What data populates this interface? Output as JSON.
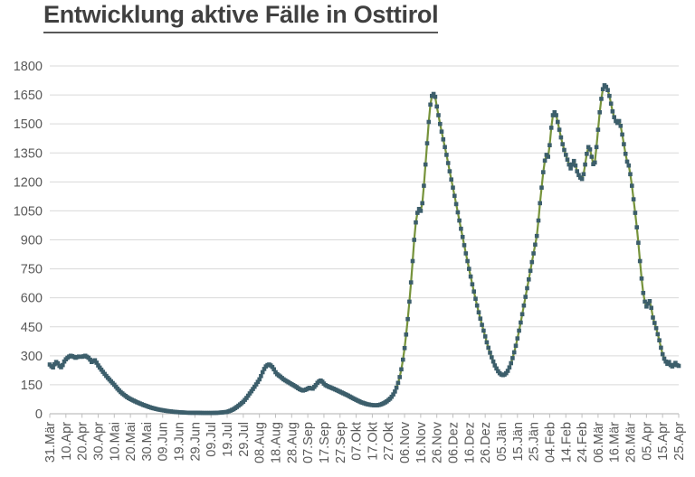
{
  "title": "Entwicklung aktive Fälle in Osttirol",
  "colors": {
    "line": "#76933B",
    "marker": "#3C5E6B",
    "grid": "#D9D9D9",
    "axis": "#BFBFBF",
    "tick_text": "#595959",
    "title_text": "#404040",
    "background": "#FFFFFF"
  },
  "chart_data": {
    "type": "line",
    "title": "Entwicklung aktive Fälle in Osttirol",
    "xlabel": "",
    "ylabel": "",
    "legend": "none",
    "grid": "horizontal",
    "y_axis": {
      "min": 0,
      "max": 1800,
      "ticks": [
        0,
        150,
        300,
        450,
        600,
        750,
        900,
        1050,
        1200,
        1350,
        1500,
        1650,
        1800
      ]
    },
    "x_axis": {
      "tick_interval_days": 10,
      "total_days": 390,
      "tick_labels": [
        "31.Mär",
        "10.Apr",
        "20.Apr",
        "30.Apr",
        "10.Mai",
        "20.Mai",
        "30.Mai",
        "09.Jun",
        "19.Jun",
        "29.Jun",
        "09.Jul",
        "19.Jul",
        "29.Jul",
        "08.Aug",
        "18.Aug",
        "28.Aug",
        "07.Sep",
        "17.Sep",
        "27.Sep",
        "07.Okt",
        "17.Okt",
        "27.Okt",
        "06.Nov",
        "16.Nov",
        "26.Nov",
        "06.Dez",
        "16.Dez",
        "26.Dez",
        "05.Jän",
        "15.Jän",
        "25.Jän",
        "04.Feb",
        "14.Feb",
        "24.Feb",
        "06.Mär",
        "16.Mär",
        "26.Mär",
        "05.Apr",
        "15.Apr",
        "25.Apr"
      ]
    },
    "series": [
      {
        "marker": "square",
        "points_day_value": [
          [
            0,
            255
          ],
          [
            1,
            246
          ],
          [
            2,
            240
          ],
          [
            3,
            256
          ],
          [
            4,
            268
          ],
          [
            5,
            261
          ],
          [
            6,
            248
          ],
          [
            7,
            241
          ],
          [
            8,
            252
          ],
          [
            9,
            270
          ],
          [
            10,
            282
          ],
          [
            11,
            290
          ],
          [
            12,
            296
          ],
          [
            13,
            300
          ],
          [
            14,
            298
          ],
          [
            15,
            294
          ],
          [
            16,
            290
          ],
          [
            17,
            293
          ],
          [
            18,
            296
          ],
          [
            20,
            295
          ],
          [
            22,
            300
          ],
          [
            24,
            290
          ],
          [
            25,
            280
          ],
          [
            26,
            268
          ],
          [
            27,
            273
          ],
          [
            28,
            277
          ],
          [
            29,
            264
          ],
          [
            30,
            250
          ],
          [
            32,
            228
          ],
          [
            34,
            206
          ],
          [
            36,
            186
          ],
          [
            38,
            168
          ],
          [
            40,
            150
          ],
          [
            42,
            130
          ],
          [
            44,
            112
          ],
          [
            46,
            98
          ],
          [
            48,
            86
          ],
          [
            50,
            76
          ],
          [
            52,
            68
          ],
          [
            54,
            60
          ],
          [
            56,
            53
          ],
          [
            58,
            46
          ],
          [
            60,
            40
          ],
          [
            62,
            34
          ],
          [
            64,
            29
          ],
          [
            66,
            25
          ],
          [
            68,
            21
          ],
          [
            70,
            18
          ],
          [
            73,
            14
          ],
          [
            76,
            11
          ],
          [
            80,
            8
          ],
          [
            84,
            6
          ],
          [
            88,
            5
          ],
          [
            92,
            5
          ],
          [
            96,
            4
          ],
          [
            100,
            4
          ],
          [
            104,
            5
          ],
          [
            107,
            7
          ],
          [
            110,
            10
          ],
          [
            112,
            16
          ],
          [
            114,
            24
          ],
          [
            116,
            35
          ],
          [
            118,
            48
          ],
          [
            120,
            62
          ],
          [
            122,
            82
          ],
          [
            124,
            105
          ],
          [
            126,
            128
          ],
          [
            128,
            152
          ],
          [
            129,
            165
          ],
          [
            130,
            178
          ],
          [
            131,
            195
          ],
          [
            132,
            215
          ],
          [
            133,
            232
          ],
          [
            134,
            245
          ],
          [
            135,
            252
          ],
          [
            136,
            255
          ],
          [
            137,
            250
          ],
          [
            138,
            242
          ],
          [
            139,
            230
          ],
          [
            140,
            215
          ],
          [
            141,
            205
          ],
          [
            142,
            198
          ],
          [
            143,
            192
          ],
          [
            144,
            185
          ],
          [
            145,
            178
          ],
          [
            147,
            168
          ],
          [
            149,
            158
          ],
          [
            151,
            148
          ],
          [
            153,
            138
          ],
          [
            155,
            127
          ],
          [
            157,
            120
          ],
          [
            159,
            126
          ],
          [
            161,
            134
          ],
          [
            163,
            130
          ],
          [
            165,
            148
          ],
          [
            166,
            160
          ],
          [
            167,
            168
          ],
          [
            168,
            172
          ],
          [
            169,
            166
          ],
          [
            170,
            156
          ],
          [
            171,
            148
          ],
          [
            173,
            140
          ],
          [
            175,
            133
          ],
          [
            177,
            126
          ],
          [
            179,
            118
          ],
          [
            181,
            110
          ],
          [
            183,
            102
          ],
          [
            185,
            94
          ],
          [
            187,
            85
          ],
          [
            189,
            76
          ],
          [
            191,
            68
          ],
          [
            193,
            60
          ],
          [
            195,
            54
          ],
          [
            197,
            49
          ],
          [
            199,
            46
          ],
          [
            201,
            44
          ],
          [
            203,
            44
          ],
          [
            205,
            47
          ],
          [
            207,
            54
          ],
          [
            209,
            64
          ],
          [
            211,
            78
          ],
          [
            212,
            88
          ],
          [
            213,
            100
          ],
          [
            214,
            115
          ],
          [
            215,
            135
          ],
          [
            216,
            160
          ],
          [
            217,
            190
          ],
          [
            218,
            230
          ],
          [
            219,
            280
          ],
          [
            220,
            340
          ],
          [
            221,
            410
          ],
          [
            222,
            490
          ],
          [
            223,
            580
          ],
          [
            224,
            680
          ],
          [
            225,
            790
          ],
          [
            226,
            900
          ],
          [
            227,
            990
          ],
          [
            228,
            1040
          ],
          [
            229,
            1060
          ],
          [
            230,
            1050
          ],
          [
            231,
            1090
          ],
          [
            232,
            1180
          ],
          [
            233,
            1290
          ],
          [
            234,
            1400
          ],
          [
            235,
            1510
          ],
          [
            236,
            1600
          ],
          [
            237,
            1645
          ],
          [
            238,
            1655
          ],
          [
            239,
            1640
          ],
          [
            240,
            1590
          ],
          [
            242,
            1500
          ],
          [
            244,
            1420
          ],
          [
            246,
            1340
          ],
          [
            248,
            1255
          ],
          [
            250,
            1170
          ],
          [
            252,
            1085
          ],
          [
            254,
            1000
          ],
          [
            256,
            915
          ],
          [
            258,
            830
          ],
          [
            260,
            750
          ],
          [
            262,
            670
          ],
          [
            264,
            595
          ],
          [
            266,
            525
          ],
          [
            268,
            460
          ],
          [
            270,
            400
          ],
          [
            271,
            370
          ],
          [
            272,
            342
          ],
          [
            273,
            316
          ],
          [
            274,
            292
          ],
          [
            275,
            270
          ],
          [
            276,
            250
          ],
          [
            277,
            234
          ],
          [
            278,
            220
          ],
          [
            279,
            210
          ],
          [
            280,
            203
          ],
          [
            281,
            200
          ],
          [
            282,
            203
          ],
          [
            283,
            210
          ],
          [
            284,
            222
          ],
          [
            285,
            240
          ],
          [
            286,
            262
          ],
          [
            287,
            288
          ],
          [
            288,
            318
          ],
          [
            289,
            352
          ],
          [
            290,
            390
          ],
          [
            291,
            430
          ],
          [
            292,
            472
          ],
          [
            293,
            515
          ],
          [
            294,
            560
          ],
          [
            295,
            605
          ],
          [
            296,
            650
          ],
          [
            297,
            695
          ],
          [
            298,
            740
          ],
          [
            299,
            785
          ],
          [
            300,
            830
          ],
          [
            301,
            875
          ],
          [
            302,
            920
          ],
          [
            303,
            1000
          ],
          [
            304,
            1090
          ],
          [
            305,
            1170
          ],
          [
            306,
            1250
          ],
          [
            307,
            1310
          ],
          [
            308,
            1340
          ],
          [
            309,
            1330
          ],
          [
            310,
            1390
          ],
          [
            311,
            1480
          ],
          [
            312,
            1545
          ],
          [
            313,
            1560
          ],
          [
            314,
            1545
          ],
          [
            315,
            1510
          ],
          [
            316,
            1470
          ],
          [
            317,
            1430
          ],
          [
            318,
            1395
          ],
          [
            319,
            1365
          ],
          [
            320,
            1340
          ],
          [
            321,
            1315
          ],
          [
            322,
            1290
          ],
          [
            323,
            1270
          ],
          [
            324,
            1290
          ],
          [
            325,
            1308
          ],
          [
            326,
            1285
          ],
          [
            327,
            1255
          ],
          [
            328,
            1235
          ],
          [
            329,
            1222
          ],
          [
            330,
            1215
          ],
          [
            331,
            1240
          ],
          [
            332,
            1290
          ],
          [
            333,
            1345
          ],
          [
            334,
            1380
          ],
          [
            335,
            1368
          ],
          [
            336,
            1330
          ],
          [
            337,
            1292
          ],
          [
            338,
            1300
          ],
          [
            339,
            1380
          ],
          [
            340,
            1470
          ],
          [
            341,
            1560
          ],
          [
            342,
            1630
          ],
          [
            343,
            1680
          ],
          [
            344,
            1700
          ],
          [
            345,
            1692
          ],
          [
            346,
            1675
          ],
          [
            347,
            1645
          ],
          [
            348,
            1605
          ],
          [
            349,
            1565
          ],
          [
            350,
            1535
          ],
          [
            351,
            1515
          ],
          [
            352,
            1505
          ],
          [
            353,
            1515
          ],
          [
            354,
            1490
          ],
          [
            355,
            1445
          ],
          [
            356,
            1395
          ],
          [
            357,
            1345
          ],
          [
            358,
            1305
          ],
          [
            359,
            1285
          ],
          [
            360,
            1240
          ],
          [
            361,
            1180
          ],
          [
            362,
            1110
          ],
          [
            363,
            1040
          ],
          [
            364,
            965
          ],
          [
            365,
            885
          ],
          [
            366,
            790
          ],
          [
            367,
            700
          ],
          [
            368,
            625
          ],
          [
            369,
            580
          ],
          [
            370,
            555
          ],
          [
            371,
            570
          ],
          [
            372,
            583
          ],
          [
            373,
            548
          ],
          [
            374,
            498
          ],
          [
            375,
            470
          ],
          [
            376,
            443
          ],
          [
            377,
            412
          ],
          [
            378,
            380
          ],
          [
            379,
            342
          ],
          [
            380,
            308
          ],
          [
            381,
            285
          ],
          [
            382,
            270
          ],
          [
            383,
            258
          ],
          [
            384,
            268
          ],
          [
            385,
            252
          ],
          [
            386,
            245
          ],
          [
            387,
            253
          ],
          [
            388,
            263
          ],
          [
            389,
            252
          ],
          [
            390,
            248
          ]
        ]
      }
    ]
  }
}
